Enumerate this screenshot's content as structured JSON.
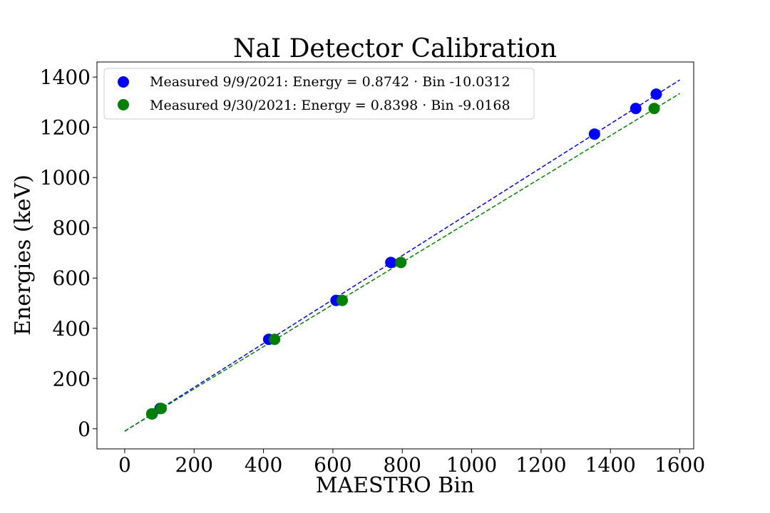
{
  "chart_data": {
    "type": "scatter",
    "title": "NaI Detector Calibration",
    "xlabel": "MAESTRO Bin",
    "ylabel": "Energies (keV)",
    "xlim": [
      -80,
      1640
    ],
    "ylim": [
      -80,
      1460
    ],
    "xticks": [
      0,
      200,
      400,
      600,
      800,
      1000,
      1200,
      1400,
      1600
    ],
    "yticks": [
      0,
      200,
      400,
      600,
      800,
      1000,
      1200,
      1400
    ],
    "grid": false,
    "legend_position": "top-left",
    "series": [
      {
        "name": "Measured 9/9/2021: Energy = 0.8742 · Bin -10.0312",
        "color": "#0000ff",
        "marker": "circle",
        "x": [
          79,
          102,
          415,
          609,
          767,
          1354,
          1473,
          1532
        ],
        "y": [
          59.5,
          81,
          356,
          511,
          662,
          1173,
          1275,
          1332
        ],
        "fit": {
          "slope": 0.8742,
          "intercept": -10.0312,
          "x_range": [
            0,
            1600
          ],
          "style": "dashed"
        }
      },
      {
        "name": "Measured 9/30/2021: Energy = 0.8398 · Bin -9.0168",
        "color": "#008000",
        "marker": "circle",
        "x": [
          78,
          105,
          432,
          627,
          796,
          1526
        ],
        "y": [
          59.5,
          81,
          356,
          511,
          662,
          1275
        ],
        "fit": {
          "slope": 0.8398,
          "intercept": -9.0168,
          "x_range": [
            0,
            1600
          ],
          "style": "dashed"
        }
      }
    ]
  }
}
